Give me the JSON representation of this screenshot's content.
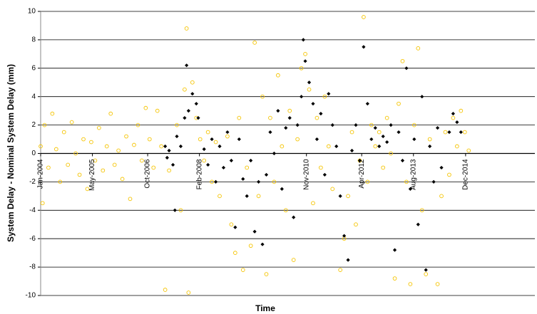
{
  "chart_data": {
    "type": "scatter",
    "xlabel": "Time",
    "ylabel": "System Delay - Nominal System Delay (mm)",
    "xlim": [
      2004,
      2016.7
    ],
    "ylim": [
      -10,
      10
    ],
    "xticks": [
      {
        "value": 2004.0,
        "label": "Jan-2004"
      },
      {
        "value": 2005.33,
        "label": "May-2005"
      },
      {
        "value": 2006.75,
        "label": "Oct-2006"
      },
      {
        "value": 2008.08,
        "label": "Feb-2008"
      },
      {
        "value": 2010.83,
        "label": "Nov-2010"
      },
      {
        "value": 2012.25,
        "label": "Apr-2012"
      },
      {
        "value": 2013.58,
        "label": "Aug-2013"
      },
      {
        "value": 2014.92,
        "label": "Dec-2014"
      }
    ],
    "yticks": [
      -10,
      -8,
      -6,
      -4,
      -2,
      0,
      2,
      4,
      6,
      8,
      10
    ],
    "grid": true,
    "series": [
      {
        "color": "#f5c400",
        "marker": "circle",
        "x": [
          2004.0,
          2004.05,
          2004.1,
          2004.2,
          2004.3,
          2004.4,
          2004.5,
          2004.6,
          2004.7,
          2004.8,
          2004.9,
          2005.0,
          2005.1,
          2005.2,
          2005.3,
          2005.4,
          2005.5,
          2005.6,
          2005.7,
          2005.8,
          2005.9,
          2006.0,
          2006.1,
          2006.2,
          2006.3,
          2006.4,
          2006.5,
          2006.6,
          2006.7,
          2006.8,
          2006.9,
          2007.0,
          2007.1,
          2007.2,
          2007.3,
          2007.5,
          2007.6,
          2007.7,
          2007.75,
          2007.8,
          2007.9,
          2008.0,
          2008.1,
          2008.2,
          2008.3,
          2008.4,
          2008.5,
          2008.6,
          2008.8,
          2008.9,
          2009.0,
          2009.1,
          2009.2,
          2009.3,
          2009.4,
          2009.5,
          2009.6,
          2009.7,
          2009.8,
          2009.9,
          2010.0,
          2010.1,
          2010.2,
          2010.3,
          2010.4,
          2010.5,
          2010.6,
          2010.7,
          2010.8,
          2010.9,
          2011.0,
          2011.1,
          2011.2,
          2011.3,
          2011.4,
          2011.5,
          2011.7,
          2011.8,
          2011.9,
          2012.0,
          2012.1,
          2012.2,
          2012.3,
          2012.4,
          2012.5,
          2012.6,
          2012.7,
          2012.8,
          2012.9,
          2013.0,
          2013.1,
          2013.2,
          2013.3,
          2013.4,
          2013.5,
          2013.6,
          2013.7,
          2013.8,
          2013.9,
          2014.0,
          2014.2,
          2014.3,
          2014.4,
          2014.5,
          2014.6,
          2014.7,
          2014.8,
          2014.9,
          2015.0
        ],
        "values": [
          0.5,
          -3.5,
          2.0,
          -1.0,
          2.8,
          0.3,
          -2.0,
          1.5,
          -0.8,
          2.2,
          0.0,
          -1.5,
          1.0,
          -2.5,
          0.8,
          -0.5,
          1.8,
          -1.2,
          0.5,
          2.8,
          -0.8,
          0.2,
          -1.8,
          1.2,
          -3.2,
          0.6,
          2.0,
          -0.5,
          3.2,
          1.0,
          -1.0,
          3.0,
          0.5,
          -9.6,
          -1.2,
          2.0,
          -4.0,
          4.5,
          8.8,
          -9.8,
          5.0,
          2.5,
          1.0,
          -0.5,
          1.5,
          -2.0,
          0.8,
          -3.0,
          1.2,
          -5.0,
          -7.0,
          2.5,
          -8.2,
          -1.0,
          -6.5,
          7.8,
          -3.0,
          4.0,
          -8.5,
          2.5,
          -2.0,
          5.5,
          0.5,
          -4.0,
          3.0,
          -7.5,
          1.0,
          6.0,
          7.0,
          4.5,
          -3.5,
          2.5,
          -1.0,
          4.0,
          0.5,
          -2.5,
          -8.2,
          -6.0,
          -3.0,
          1.5,
          -5.0,
          -0.5,
          9.6,
          -2.0,
          2.0,
          0.5,
          1.5,
          -1.0,
          2.5,
          0.0,
          -8.8,
          3.5,
          6.5,
          -2.0,
          -9.2,
          2.0,
          7.4,
          -4.0,
          -8.5,
          1.0,
          -9.2,
          -3.0,
          1.5,
          -1.5,
          2.5,
          0.5,
          3.0,
          1.5,
          0.2
        ]
      },
      {
        "color": "#000000",
        "marker": "diamond",
        "x": [
          2007.2,
          2007.25,
          2007.3,
          2007.4,
          2007.45,
          2007.5,
          2007.6,
          2007.7,
          2007.75,
          2007.8,
          2007.9,
          2008.0,
          2008.05,
          2008.2,
          2008.3,
          2008.4,
          2008.5,
          2008.6,
          2008.7,
          2008.8,
          2008.9,
          2009.0,
          2009.1,
          2009.2,
          2009.3,
          2009.4,
          2009.5,
          2009.6,
          2009.7,
          2009.8,
          2009.9,
          2010.0,
          2010.1,
          2010.2,
          2010.3,
          2010.4,
          2010.5,
          2010.6,
          2010.7,
          2010.75,
          2010.8,
          2010.9,
          2011.0,
          2011.1,
          2011.2,
          2011.3,
          2011.4,
          2011.5,
          2011.6,
          2011.7,
          2011.8,
          2011.9,
          2012.0,
          2012.1,
          2012.2,
          2012.3,
          2012.4,
          2012.5,
          2012.6,
          2012.7,
          2012.8,
          2012.9,
          2013.0,
          2013.1,
          2013.2,
          2013.3,
          2013.4,
          2013.5,
          2013.6,
          2013.7,
          2013.8,
          2013.9,
          2014.0,
          2014.1,
          2014.2,
          2014.3,
          2014.5,
          2014.6,
          2014.7,
          2014.8
        ],
        "values": [
          0.5,
          -0.3,
          0.2,
          -0.8,
          -4.0,
          1.2,
          0.5,
          2.5,
          6.2,
          3.0,
          4.2,
          3.5,
          2.5,
          0.3,
          -0.8,
          1.0,
          -2.0,
          0.5,
          -1.0,
          1.5,
          -0.5,
          -5.2,
          1.0,
          -1.8,
          -3.0,
          -0.5,
          -5.5,
          -2.0,
          -6.4,
          -1.5,
          1.5,
          0.0,
          3.0,
          -2.5,
          1.8,
          2.5,
          -4.5,
          2.0,
          4.0,
          8.0,
          6.5,
          5.0,
          3.5,
          1.0,
          2.8,
          -1.5,
          4.2,
          2.0,
          0.5,
          -3.0,
          -5.8,
          -7.5,
          0.2,
          2.0,
          -0.5,
          7.5,
          3.5,
          1.0,
          1.8,
          0.5,
          1.2,
          0.8,
          2.0,
          -6.8,
          1.5,
          -0.5,
          6.0,
          -2.5,
          1.0,
          -5.0,
          4.0,
          -8.2,
          0.5,
          -2.0,
          1.8,
          -1.0,
          1.5,
          2.8,
          2.2,
          1.5
        ]
      }
    ]
  }
}
